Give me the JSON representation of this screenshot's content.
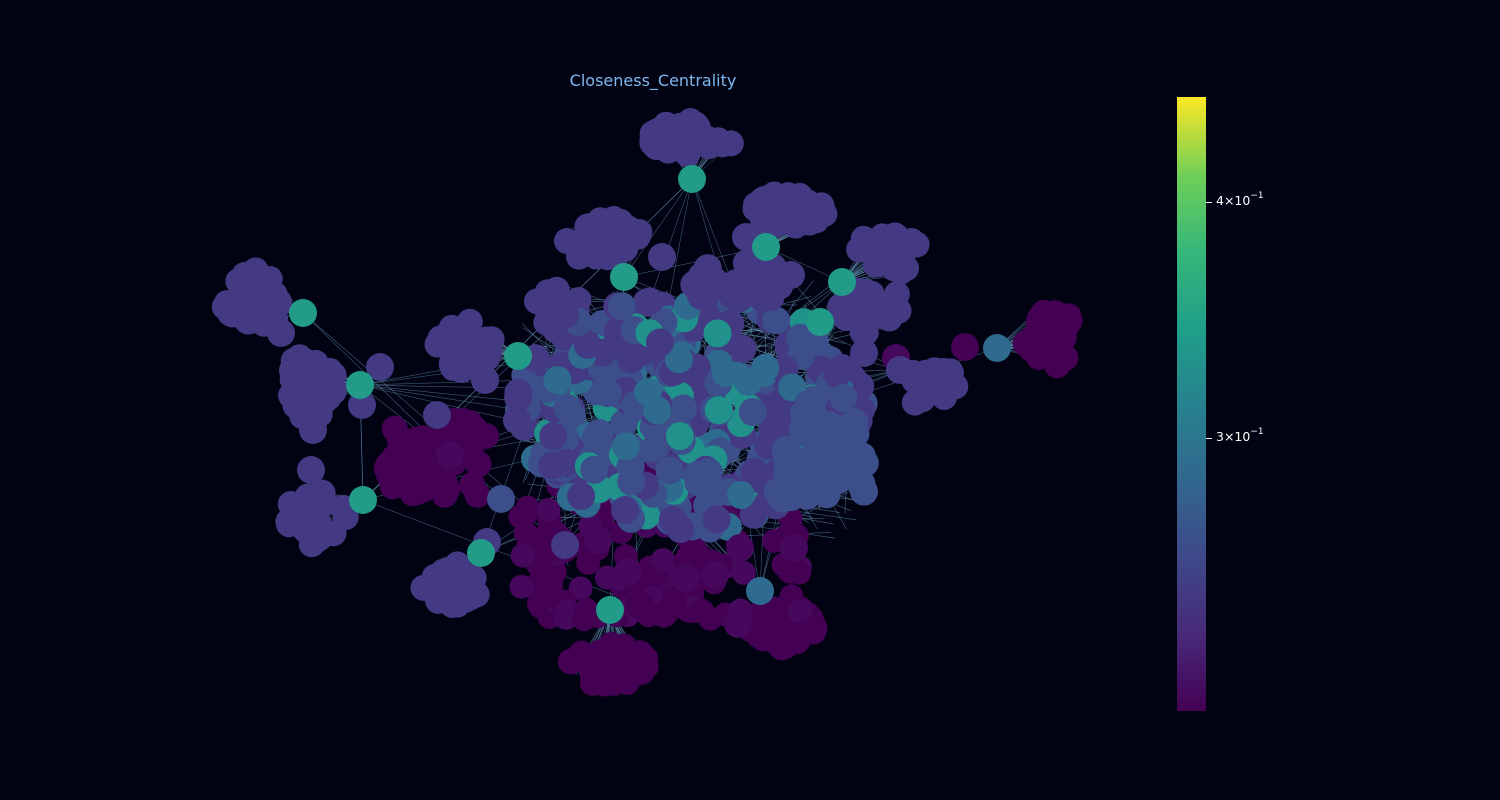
{
  "title": "Closeness_Centrality",
  "colors": {
    "background": "#010212",
    "edge": "#6fa3c7",
    "title": "#7fb8ef",
    "colormap": "viridis"
  },
  "colorbar": {
    "scale": "log",
    "range": [
      0.205,
      0.46
    ],
    "ticks": [
      {
        "value": 0.4,
        "mantissa": "4",
        "exponent": "−1"
      },
      {
        "value": 0.3,
        "mantissa": "3",
        "exponent": "−1"
      }
    ]
  }
}
